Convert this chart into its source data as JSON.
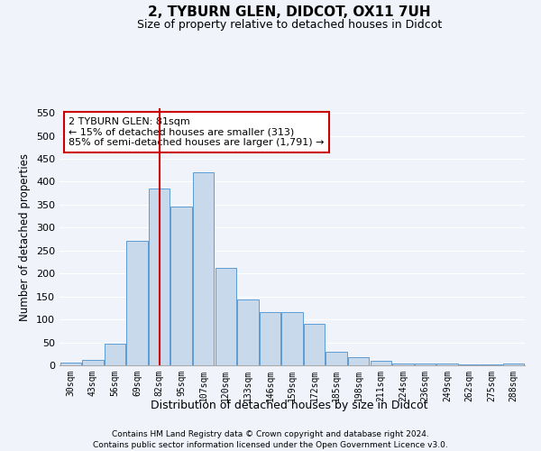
{
  "title1": "2, TYBURN GLEN, DIDCOT, OX11 7UH",
  "title2": "Size of property relative to detached houses in Didcot",
  "xlabel": "Distribution of detached houses by size in Didcot",
  "ylabel": "Number of detached properties",
  "categories": [
    "30sqm",
    "43sqm",
    "56sqm",
    "69sqm",
    "82sqm",
    "95sqm",
    "107sqm",
    "120sqm",
    "133sqm",
    "146sqm",
    "159sqm",
    "172sqm",
    "185sqm",
    "198sqm",
    "211sqm",
    "224sqm",
    "236sqm",
    "249sqm",
    "262sqm",
    "275sqm",
    "288sqm"
  ],
  "values": [
    5,
    12,
    48,
    272,
    385,
    345,
    420,
    212,
    143,
    115,
    115,
    90,
    30,
    18,
    10,
    3,
    3,
    3,
    1,
    1,
    3
  ],
  "bar_color": "#c9d9ec",
  "bar_edge_color": "#5b9bd5",
  "vline_x": 4,
  "vline_color": "#cc0000",
  "annotation_text": "2 TYBURN GLEN: 81sqm\n← 15% of detached houses are smaller (313)\n85% of semi-detached houses are larger (1,791) →",
  "annotation_box_color": "#ffffff",
  "annotation_box_edge": "#cc0000",
  "ylim": [
    0,
    560
  ],
  "yticks": [
    0,
    50,
    100,
    150,
    200,
    250,
    300,
    350,
    400,
    450,
    500,
    550
  ],
  "footer1": "Contains HM Land Registry data © Crown copyright and database right 2024.",
  "footer2": "Contains public sector information licensed under the Open Government Licence v3.0.",
  "bg_color": "#f0f4fa",
  "plot_bg_color": "#f0f4fa"
}
